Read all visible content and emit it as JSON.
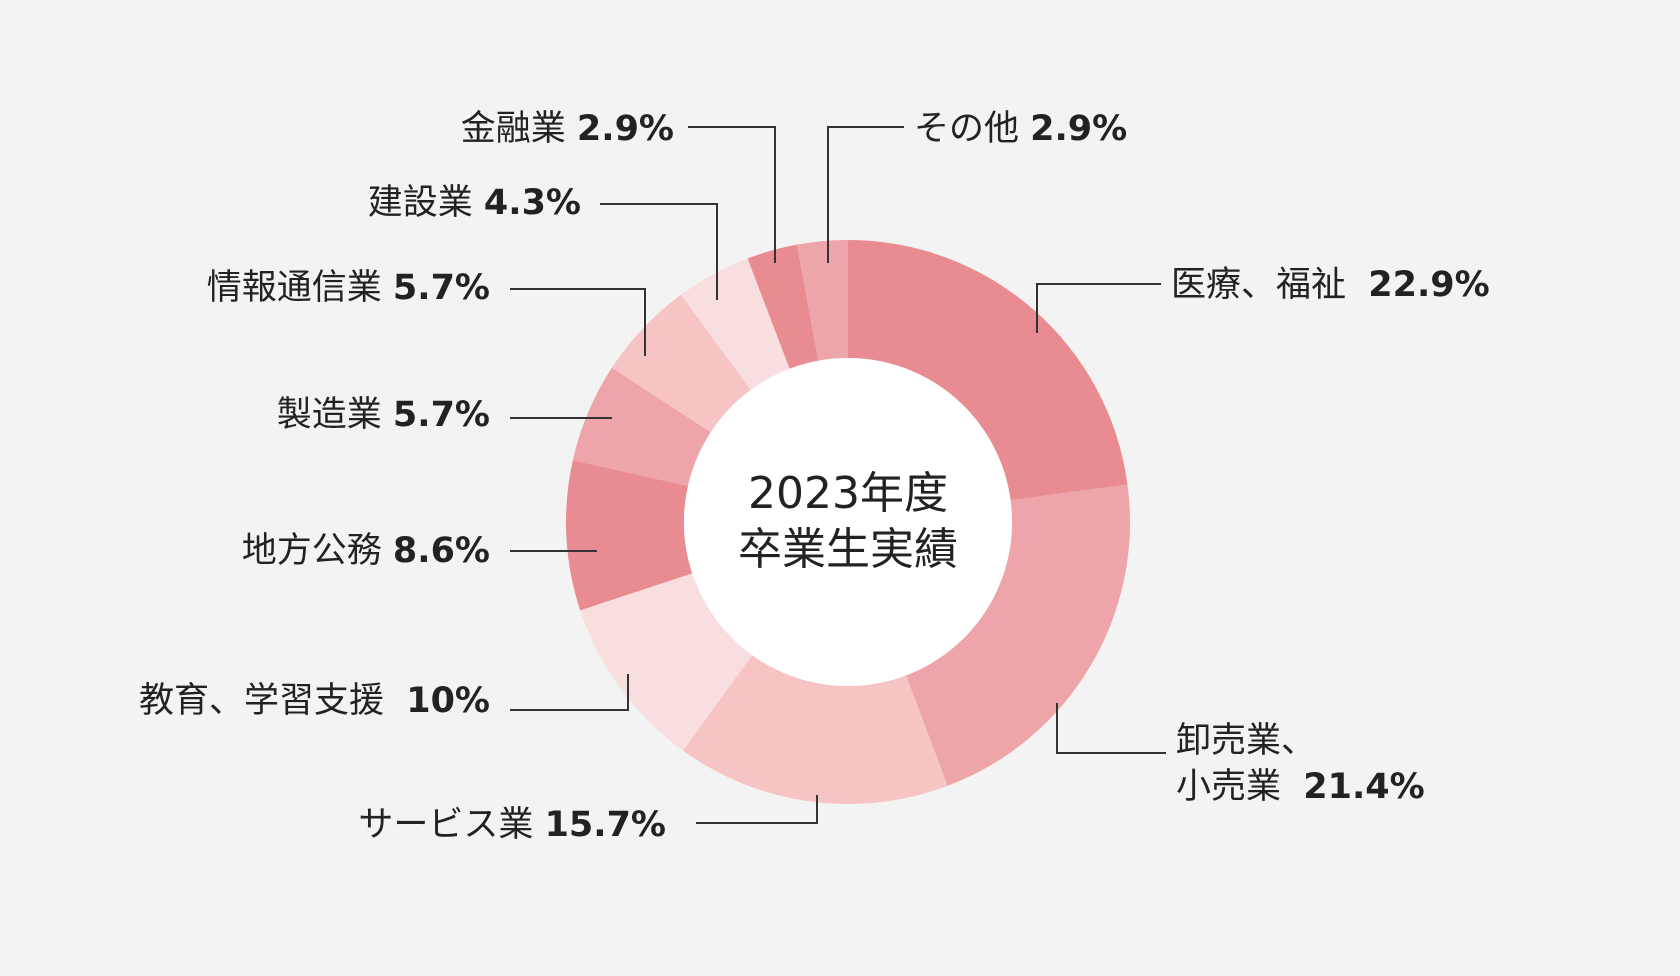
{
  "center": {
    "line1": "2023年度",
    "line2": "卒業生実績"
  },
  "colors": {
    "background": "#f3f3f3",
    "hole": "#ffffff",
    "leader": "#333333",
    "palette": [
      "#e98c91",
      "#eda5a9",
      "#f7c4c6",
      "#f8dedf"
    ]
  },
  "chart_data": {
    "type": "pie",
    "unit": "%",
    "donut": true,
    "start": "12 o'clock, clockwise",
    "slices": [
      {
        "name": "医療、福祉",
        "value": 22.9,
        "label": "22.9%",
        "color": "#e98c91"
      },
      {
        "name": "卸売業、",
        "name2": "小売業",
        "value": 21.4,
        "label": "21.4%",
        "color": "#eda5a9"
      },
      {
        "name": "サービス業",
        "value": 15.7,
        "label": "15.7%",
        "color": "#f7c4c6"
      },
      {
        "name": "教育、学習支援",
        "value": 10.0,
        "label": "10%",
        "color": "#f8dedf"
      },
      {
        "name": "地方公務",
        "value": 8.6,
        "label": "8.6%",
        "color": "#e98c91"
      },
      {
        "name": "製造業",
        "value": 5.7,
        "label": "5.7%",
        "color": "#eda5a9"
      },
      {
        "name": "情報通信業",
        "value": 5.7,
        "label": "5.7%",
        "color": "#f7c4c6"
      },
      {
        "name": "建設業",
        "value": 4.3,
        "label": "4.3%",
        "color": "#f8dedf"
      },
      {
        "name": "金融業",
        "value": 2.9,
        "label": "2.9%",
        "color": "#e98c91"
      },
      {
        "name": "その他",
        "value": 2.9,
        "label": "2.9%",
        "color": "#eda5a9"
      }
    ]
  }
}
